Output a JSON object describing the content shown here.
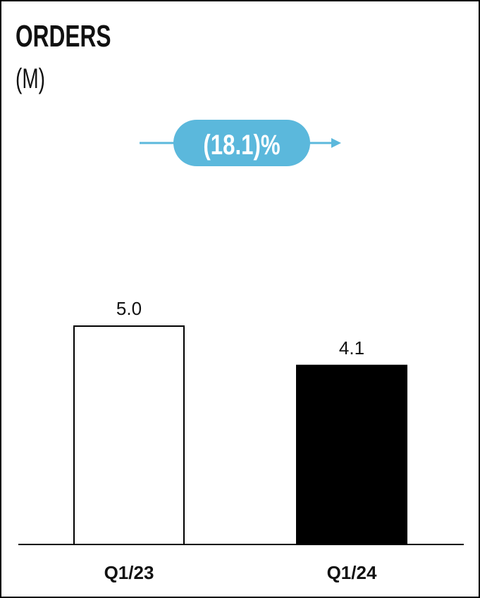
{
  "chart_data": {
    "type": "bar",
    "title": "ORDERS",
    "subtitle": "(M)",
    "categories": [
      "Q1/23",
      "Q1/24"
    ],
    "values": [
      5.0,
      4.1
    ],
    "value_labels": [
      "5.0",
      "4.1"
    ],
    "bar_fills": [
      "#ffffff",
      "#000000"
    ],
    "change_label": "(18.1)%",
    "accent_color": "#5bb8dc",
    "ylim": [
      0,
      5.0
    ],
    "grid": false
  }
}
